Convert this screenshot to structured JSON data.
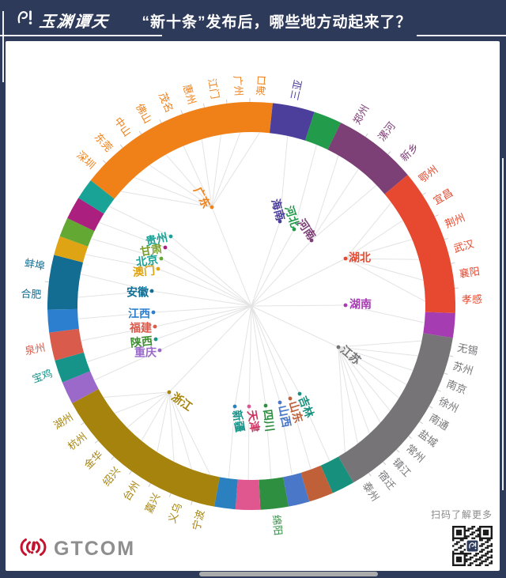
{
  "header": {
    "brand": "玉渊谭天",
    "title": "“新十条”发布后，哪些地方动起来了？"
  },
  "footer": {
    "brand": "GTCOM",
    "qr_caption": "扫码了解更多"
  },
  "colors": {
    "page_bg": "#2d3a5a",
    "card_bg": "#ffffff",
    "spider_line": "#e3e3e3",
    "tick": "#cccccc",
    "gtcom_red": "#c4122f",
    "gtcom_text": "#8e8e8e",
    "qr_caption": "#8a8a8a",
    "home_bar": "#ababab",
    "deco_line": "#ffffff"
  },
  "chart_data": {
    "type": "radial-province-city-ring",
    "title": "“新十条”发布后，哪些地方动起来了？",
    "center": [
      311,
      335
    ],
    "outer_radius": 258,
    "inner_radius": 220,
    "start_angle": 308,
    "legend_position": "none",
    "grid": false,
    "provinces": [
      {
        "name": "广东",
        "color": "#F08119",
        "span": 58,
        "cities": [
          "深圳",
          "东莞",
          "中山",
          "佛山",
          "茂名",
          "惠州",
          "江门",
          "广州",
          "海口"
        ],
        "hub": [
          261,
          210
        ],
        "label": [
          241,
          186,
          62,
          "start"
        ]
      },
      {
        "name": "海南",
        "color": "#4C3F9C",
        "span": 12,
        "cities": [
          "三亚"
        ],
        "hub": [
          347,
          228
        ],
        "label": [
          340,
          200,
          75,
          "start"
        ]
      },
      {
        "name": "河北",
        "color": "#229C4B",
        "span": 8,
        "cities": [],
        "hub": [
          365,
          238
        ],
        "label": [
          357,
          209,
          72,
          "start"
        ]
      },
      {
        "name": "河南",
        "color": "#7C3F76",
        "span": 24,
        "cities": [
          "郑州",
          "漯河",
          "新乡"
        ],
        "hub": [
          387,
          252
        ],
        "label": [
          372,
          227,
          56,
          "start"
        ]
      },
      {
        "name": "湖北",
        "color": "#E6492F",
        "span": 42,
        "cities": [
          "鄂州",
          "宜昌",
          "荆州",
          "武汉",
          "襄阳",
          "孝感"
        ],
        "hub": [
          430,
          275
        ],
        "label": [
          434,
          275,
          0,
          "start"
        ]
      },
      {
        "name": "湖南",
        "color": "#A63CB2",
        "span": 7,
        "cities": [],
        "hub": [
          430,
          334
        ],
        "label": [
          435,
          334,
          0,
          "start"
        ]
      },
      {
        "name": "江苏",
        "color": "#767477",
        "span": 51,
        "cities": [
          "无锡",
          "苏州",
          "南京",
          "徐州",
          "南通",
          "盐城",
          "常州",
          "镇江",
          "宿迁",
          "泰州"
        ],
        "hub": [
          421,
          387
        ],
        "label": [
          425,
          389,
          40,
          "start"
        ]
      },
      {
        "name": "吉林",
        "color": "#17917E",
        "span": 6.5,
        "cities": [],
        "hub": [
          372,
          446
        ],
        "label": [
          374,
          450,
          68,
          "start"
        ]
      },
      {
        "name": "山东",
        "color": "#C06038",
        "span": 7,
        "cities": [],
        "hub": [
          360,
          452
        ],
        "label": [
          362,
          456,
          73,
          "start"
        ]
      },
      {
        "name": "山西",
        "color": "#4A77C8",
        "span": 6,
        "cities": [],
        "hub": [
          347,
          457
        ],
        "label": [
          349,
          461,
          78,
          "start"
        ]
      },
      {
        "name": "四川",
        "color": "#2F8F41",
        "span": 8,
        "cities": [
          "绵阳"
        ],
        "hub": [
          329,
          461
        ],
        "label": [
          330,
          466,
          83,
          "start"
        ]
      },
      {
        "name": "天津",
        "color": "#E0578F",
        "label_color": "#C9355F",
        "span": 7,
        "cities": [],
        "hub": [
          308,
          462
        ],
        "label": [
          310,
          467,
          80,
          "start"
        ]
      },
      {
        "name": "新疆",
        "color": "#2B80C0",
        "label_color": "#1A948A",
        "span": 6,
        "cities": [],
        "hub": [
          290,
          462
        ],
        "label": [
          291,
          467,
          80,
          "start"
        ]
      },
      {
        "name": "浙江",
        "color": "#A5830C",
        "span": 51,
        "cities": [
          "宁波",
          "义乌",
          "嘉兴",
          "台州",
          "绍兴",
          "金华",
          "杭州",
          "湖州"
        ],
        "hub": [
          207,
          444
        ],
        "label": [
          211,
          449,
          35,
          "start"
        ]
      },
      {
        "name": "重庆",
        "color": "#9A69CA",
        "span": 6.5,
        "cities": [],
        "hub": [
          195,
          391
        ],
        "label": [
          191,
          395,
          0,
          "end"
        ]
      },
      {
        "name": "陕西",
        "color": "#17948A",
        "label_color": "#3F8F33",
        "span": 6.5,
        "cities": [
          "宝鸡"
        ],
        "hub": [
          190,
          377
        ],
        "label": [
          186,
          380,
          -6,
          "end"
        ]
      },
      {
        "name": "福建",
        "color": "#D95B4B",
        "span": 8,
        "cities": [
          "泉州"
        ],
        "hub": [
          189,
          361
        ],
        "label": [
          185,
          364,
          0,
          "end"
        ]
      },
      {
        "name": "江西",
        "color": "#2C7FCE",
        "span": 6.5,
        "cities": [],
        "hub": [
          187,
          343
        ],
        "label": [
          183,
          346,
          0,
          "end"
        ]
      },
      {
        "name": "安徽",
        "color": "#136D92",
        "span": 15.5,
        "cities": [
          "合肥",
          "蚌埠"
        ],
        "hub": [
          185,
          316
        ],
        "label": [
          181,
          319,
          0,
          "end"
        ]
      },
      {
        "name": "澳门",
        "color": "#DFA414",
        "span": 5.5,
        "cities": [],
        "hub": [
          193,
          288
        ],
        "label": [
          189,
          291,
          -5,
          "end"
        ]
      },
      {
        "name": "北京",
        "color": "#62A832",
        "label_color": "#1AA296",
        "span": 5.5,
        "cities": [],
        "hub": [
          197,
          275
        ],
        "label": [
          193,
          277,
          -8,
          "end"
        ]
      },
      {
        "name": "甘肃",
        "color": "#AB1F7E",
        "label_color": "#7BA02E",
        "span": 6.5,
        "cities": [],
        "hub": [
          202,
          261
        ],
        "label": [
          198,
          263,
          -10,
          "end"
        ]
      },
      {
        "name": "贵州",
        "color": "#19A296",
        "span": 6,
        "cities": [],
        "hub": [
          209,
          247
        ],
        "label": [
          205,
          249,
          -12,
          "end"
        ]
      }
    ]
  }
}
